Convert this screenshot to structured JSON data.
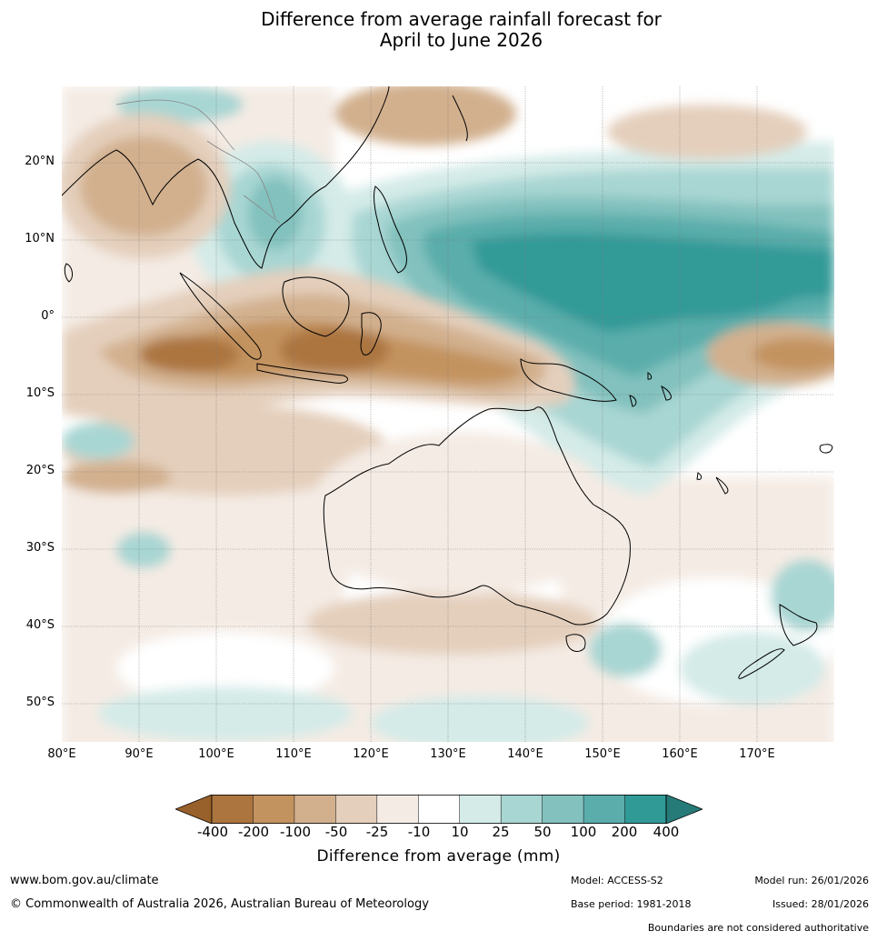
{
  "title": {
    "line1": "Difference from average rainfall forecast for",
    "line2": "April to June 2026"
  },
  "map": {
    "lat_labels": [
      "20°N",
      "10°N",
      "0°",
      "10°S",
      "20°S",
      "30°S",
      "40°S",
      "50°S"
    ],
    "lon_labels": [
      "80°E",
      "90°E",
      "100°E",
      "110°E",
      "120°E",
      "130°E",
      "140°E",
      "150°E",
      "160°E",
      "170°E"
    ]
  },
  "legend": {
    "title": "Difference from average (mm)",
    "ticks": [
      "-400",
      "-200",
      "-100",
      "-50",
      "-25",
      "-10",
      "10",
      "25",
      "50",
      "100",
      "200",
      "400"
    ],
    "colors": {
      "below_min": "#98602a",
      "bins": [
        "#ac743f",
        "#c3935f",
        "#d2b08e",
        "#e4cfbc",
        "#f4ebe4",
        "#ffffff",
        "#d4ebe8",
        "#a8d6d3",
        "#82c1be",
        "#5aadab",
        "#309a97"
      ],
      "above_max": "#267a78"
    }
  },
  "footer": {
    "website": "www.bom.gov.au/climate",
    "copyright": "© Commonwealth of Australia 2026, Australian Bureau of Meteorology",
    "model": "Model: ACCESS-S2",
    "base_period": "Base period: 1981-2018",
    "model_run": "Model run: 26/01/2026",
    "issued": "Issued: 28/01/2026",
    "disclaimer": "Boundaries are not considered authoritative"
  }
}
